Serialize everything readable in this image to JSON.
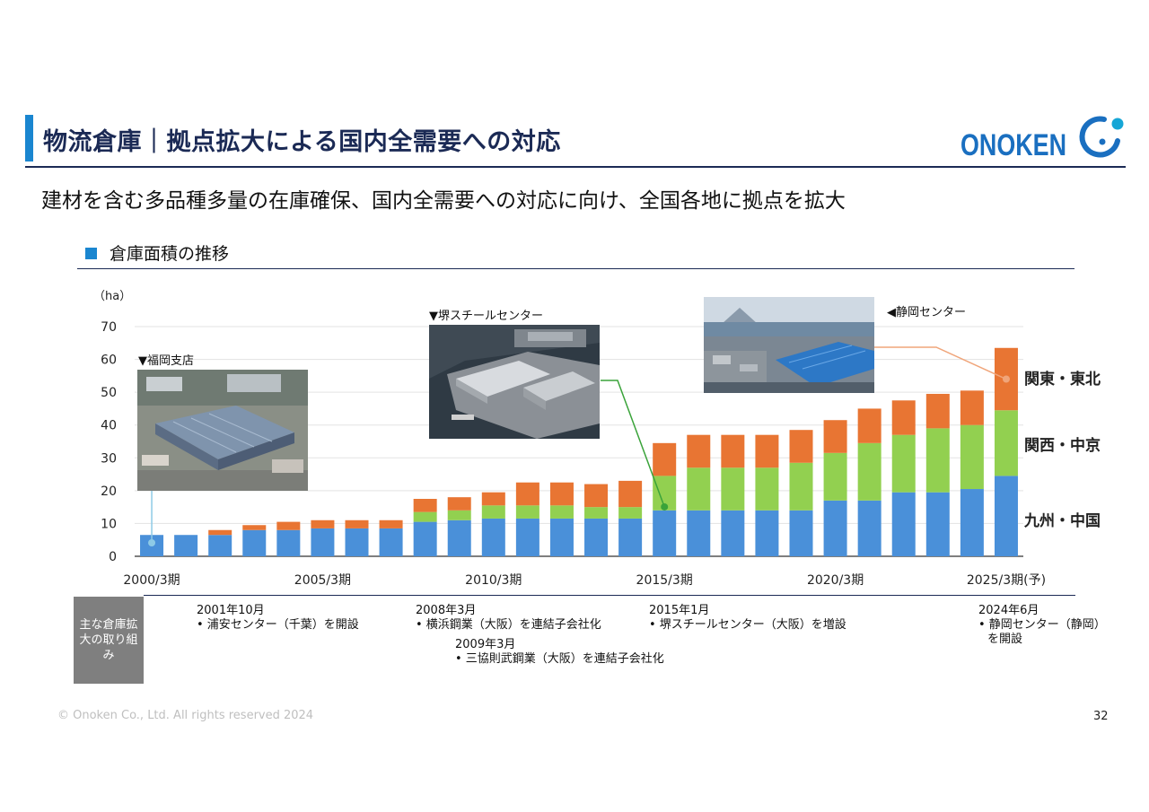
{
  "header": {
    "title": "物流倉庫｜拠点拡大による国内全需要への対応",
    "logo_text": "ONOKEN"
  },
  "subtitle": "建材を含む多品種多量の在庫確保、国内全需要への対応に向け、全国各地に拠点を拡大",
  "section_title": "倉庫面積の推移",
  "photos": {
    "fukuoka": "▼福岡支店",
    "sakai": "▼堺スチールセンター",
    "shizuoka": "◀静岡センター"
  },
  "chart_data": {
    "type": "bar",
    "stacked": true,
    "unit_label": "（ha）",
    "ylim": [
      0,
      70
    ],
    "yticks": [
      0,
      10,
      20,
      30,
      40,
      50,
      60,
      70
    ],
    "categories": [
      "2000/3期",
      "2001/3期",
      "2002/3期",
      "2003/3期",
      "2004/3期",
      "2005/3期",
      "2006/3期",
      "2007/3期",
      "2008/3期",
      "2009/3期",
      "2010/3期",
      "2011/3期",
      "2012/3期",
      "2013/3期",
      "2014/3期",
      "2015/3期",
      "2016/3期",
      "2017/3期",
      "2018/3期",
      "2019/3期",
      "2020/3期",
      "2021/3期",
      "2022/3期",
      "2023/3期",
      "2024/3期",
      "2025/3期(予)"
    ],
    "xtick_labels": [
      {
        "index": 0,
        "label": "2000/3期"
      },
      {
        "index": 5,
        "label": "2005/3期"
      },
      {
        "index": 10,
        "label": "2010/3期"
      },
      {
        "index": 15,
        "label": "2015/3期"
      },
      {
        "index": 20,
        "label": "2020/3期"
      },
      {
        "index": 25,
        "label": "2025/3期(予)"
      }
    ],
    "series": [
      {
        "name": "九州・中国",
        "color": "#4a90d9",
        "values": [
          6.5,
          6.5,
          6.5,
          8,
          8,
          8.5,
          8.5,
          8.5,
          10.5,
          11,
          11.5,
          11.5,
          11.5,
          11.5,
          11.5,
          14,
          14,
          14,
          14,
          14,
          17,
          17,
          19.5,
          19.5,
          20.5,
          24.5
        ]
      },
      {
        "name": "関西・中京",
        "color": "#92d050",
        "values": [
          0,
          0,
          0,
          0,
          0,
          0,
          0,
          0,
          3,
          3,
          4,
          4,
          4,
          3.5,
          3.5,
          10.5,
          13,
          13,
          13,
          14.5,
          14.5,
          17.5,
          17.5,
          19.5,
          19.5,
          20
        ]
      },
      {
        "name": "関東・東北",
        "color": "#e87533",
        "values": [
          0,
          0,
          1.5,
          1.5,
          2.5,
          2.5,
          2.5,
          2.5,
          4,
          4,
          4,
          7,
          7,
          7,
          8,
          10,
          10,
          10,
          10,
          10,
          10,
          10.5,
          10.5,
          10.5,
          10.5,
          19
        ]
      }
    ],
    "region_labels": [
      {
        "text": "関東・東北",
        "color": "#e87533"
      },
      {
        "text": "関西・中京",
        "color": "#1fa34a"
      },
      {
        "text": "九州・中国",
        "color": "#4a90d9"
      }
    ]
  },
  "efforts": {
    "label": "主な倉庫拡大の取り組み",
    "events": [
      {
        "date": "2001年10月",
        "text": "• 浦安センター（千葉）を開設"
      },
      {
        "date": "2008年3月",
        "text": "• 横浜鋼業（大阪）を連結子会社化"
      },
      {
        "date": "2009年3月",
        "text": "• 三協則武鋼業（大阪）を連結子会社化"
      },
      {
        "date": "2015年1月",
        "text": "• 堺スチールセンター（大阪）を増設"
      },
      {
        "date": "2024年6月",
        "text": "• 静岡センター（静岡）",
        "text2": "を開設"
      }
    ]
  },
  "footer": {
    "copyright": "© Onoken Co., Ltd. All rights reserved 2024",
    "page": "32"
  }
}
